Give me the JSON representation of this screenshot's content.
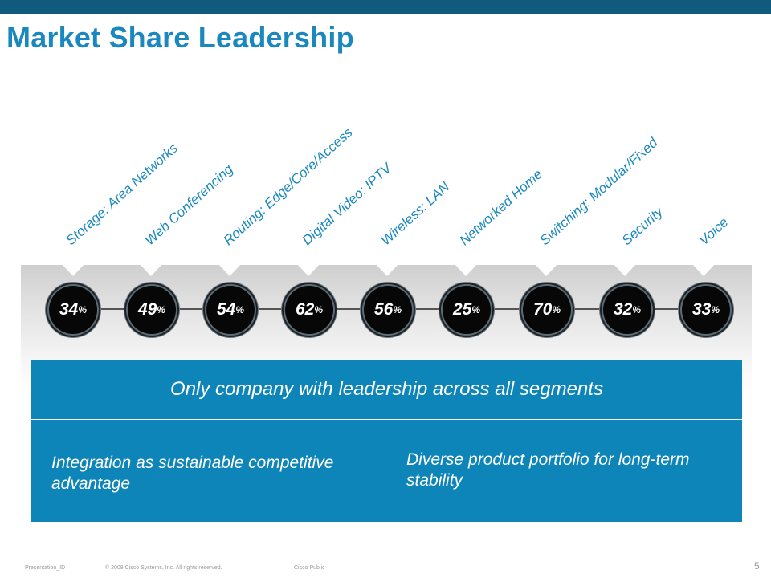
{
  "title": "Market Share Leadership",
  "segments": [
    {
      "label": "Storage: Area Networks",
      "value": "34",
      "unit": "%"
    },
    {
      "label": "Web Conferencing",
      "value": "49",
      "unit": "%"
    },
    {
      "label": "Routing: Edge/Core/Access",
      "value": "54",
      "unit": "%"
    },
    {
      "label": "Digital Video: IPTV",
      "value": "62",
      "unit": "%"
    },
    {
      "label": "Wireless: LAN",
      "value": "56",
      "unit": "%"
    },
    {
      "label": "Networked Home",
      "value": "25",
      "unit": "%"
    },
    {
      "label": "Switching: Modular/Fixed",
      "value": "70",
      "unit": "%"
    },
    {
      "label": "Security",
      "value": "32",
      "unit": "%"
    },
    {
      "label": "Voice",
      "value": "33",
      "unit": "%"
    }
  ],
  "box": {
    "headline": "Only company with leadership across all segments",
    "point_left": "Integration as sustainable competitive advantage",
    "point_right": "Diverse product portfolio for long-term stability"
  },
  "footer": {
    "presentation_id": "Presentation_ID",
    "copyright": "© 2008 Cisco Systems, Inc. All rights reserved.",
    "classification": "Cisco Public",
    "page_number": "5"
  },
  "colors": {
    "accent": "#1a88bf",
    "top_bar": "#0f5a7e",
    "box": "#0e85b8"
  }
}
